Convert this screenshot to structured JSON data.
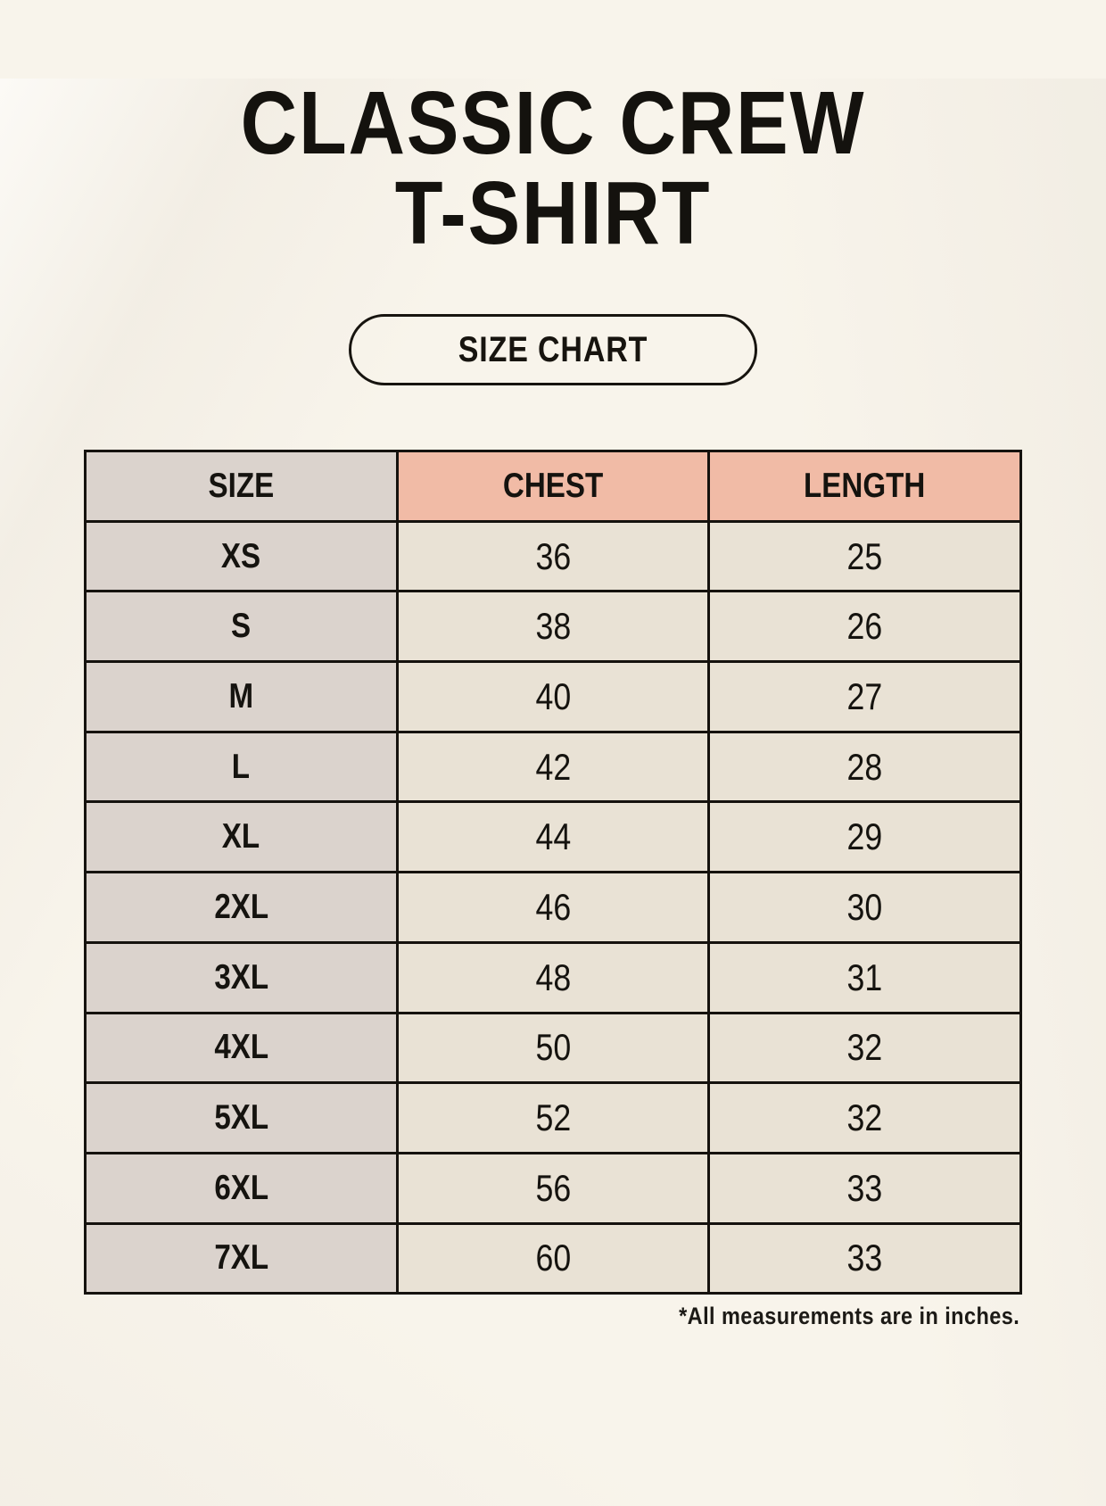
{
  "title": {
    "line1": "CLASSIC CREW",
    "line2": "T-SHIRT"
  },
  "size_chart_button": {
    "label": "SIZE CHART"
  },
  "table": {
    "columns": [
      "SIZE",
      "CHEST",
      "LENGTH"
    ],
    "rows": [
      {
        "size": "XS",
        "chest": "36",
        "length": "25"
      },
      {
        "size": "S",
        "chest": "38",
        "length": "26"
      },
      {
        "size": "M",
        "chest": "40",
        "length": "27"
      },
      {
        "size": "L",
        "chest": "42",
        "length": "28"
      },
      {
        "size": "XL",
        "chest": "44",
        "length": "29"
      },
      {
        "size": "2XL",
        "chest": "46",
        "length": "30"
      },
      {
        "size": "3XL",
        "chest": "48",
        "length": "31"
      },
      {
        "size": "4XL",
        "chest": "50",
        "length": "32"
      },
      {
        "size": "5XL",
        "chest": "52",
        "length": "32"
      },
      {
        "size": "6XL",
        "chest": "56",
        "length": "33"
      },
      {
        "size": "7XL",
        "chest": "60",
        "length": "33"
      }
    ]
  },
  "footnote": "*All measurements are in inches.",
  "colors": {
    "page_background": "#f8f4eb",
    "size_column_bg": "#dbd3cd",
    "header_accent_bg": "#f1bba6",
    "value_cell_bg": "#e9e2d5",
    "table_border": "#15120e",
    "text": "#15130f"
  }
}
